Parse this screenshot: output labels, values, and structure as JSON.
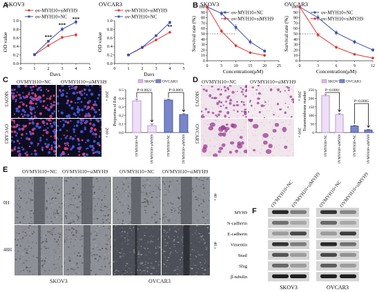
{
  "panel_letters": {
    "a": "A",
    "b": "B",
    "c": "C",
    "d": "D",
    "e": "E",
    "f": "F"
  },
  "colors": {
    "nc": "#3a4fa8",
    "si": "#e03232",
    "skov3_bar": "#d8b8e8",
    "ovcar3_bar": "#7a86c8"
  },
  "panel_a": {
    "left": {
      "title": "SKOV3",
      "legend": [
        "ov-MYH10+siMYH9",
        "ov-MYH10+NC"
      ],
      "ylabel": "OD value",
      "xlabel": "Days",
      "xticks": [
        "0",
        "1",
        "2",
        "3",
        "4",
        "5"
      ],
      "yticks": [
        "0.0",
        "0.2",
        "0.4",
        "0.6",
        "0.8",
        "1.0"
      ],
      "stars": [
        "***",
        "***",
        "***"
      ]
    },
    "right": {
      "title": "OVCAR3",
      "legend": [
        "ov-MYH10+siMYH9",
        "ov-MYH10+NC"
      ],
      "ylabel": "OD value",
      "xlabel": "Days",
      "xticks": [
        "0",
        "1",
        "2",
        "3",
        "4",
        "5"
      ],
      "yticks": [
        "0.0",
        "0.2",
        "0.4",
        "0.6",
        "0.8",
        "1.0"
      ],
      "stars": [
        "**"
      ]
    }
  },
  "panel_b": {
    "left": {
      "title": "SKOV3",
      "legend": [
        "ov-MYH10+NC",
        "ov-MYH10+siMYH9"
      ],
      "ylabel": "Survival rate (%)",
      "xlabel": "Concentration(μM)",
      "xticks": [
        "0",
        "5",
        "10",
        "15",
        "20",
        "25"
      ],
      "yticks": [
        "0",
        "10",
        "20",
        "30",
        "40",
        "50",
        "60",
        "70",
        "80",
        "90",
        "100"
      ]
    },
    "right": {
      "title": "OVCAR3",
      "legend": [
        "ov-MYH10+NC",
        "ov-MYH10+siMYH9"
      ],
      "ylabel": "Survival rate (%)",
      "xlabel": "Concentration(μM)",
      "xticks": [
        "0",
        "3",
        "6",
        "9",
        "12"
      ],
      "yticks": [
        "0",
        "10",
        "20",
        "30",
        "40",
        "50",
        "60",
        "70",
        "80",
        "90",
        "100"
      ]
    }
  },
  "panel_c": {
    "col_headers": [
      "OVMYH10+NC",
      "OVMYH10+siMYH9"
    ],
    "row_labels": [
      "SKOV3",
      "OVCAR3"
    ],
    "magnification": [
      "200×",
      "200×"
    ],
    "legend": [
      "SKOV3",
      "OVCAR3"
    ],
    "ylabel": "Proportion of Edu",
    "pvalues": [
      "P=0.0021",
      "P<0.0001"
    ],
    "yticks": [
      "0.0",
      "0.1",
      "0.2",
      "0.3",
      "0.4",
      "0.5"
    ],
    "bar_labels": [
      "OVMYH10+NC",
      "OVMYH10+siMYH9",
      "OVMYH10+NC",
      "OVMYH10+siMYH9"
    ]
  },
  "panel_d": {
    "col_headers": [
      "OVMYH10+NC",
      "OVMYH10+siMYH9"
    ],
    "row_labels": [
      "SKOV3",
      "OVCAR3"
    ],
    "magnification": [
      "200×",
      "200×"
    ],
    "legend": [
      "SKOV3",
      "OVCAR3"
    ],
    "ylabel": "Transmembrane number",
    "pvalues": [
      "P<0.0001",
      "P=0.0005"
    ],
    "yticks": [
      "0",
      "50",
      "100",
      "150",
      "200",
      "250"
    ],
    "bar_labels": [
      "OVMYH10+NC",
      "OVMYH10+siMYH9",
      "OVMYH10+NC",
      "OVMYH10+siMYH9"
    ]
  },
  "panel_e": {
    "col_headers": [
      "OVMYH10+NC",
      "OVMYH10+siMYH9",
      "OVMYH10+NC",
      "OVMYH10+siMYH9"
    ],
    "row_labels": [
      "0H",
      "48H"
    ],
    "magnification": [
      "40×",
      "40×"
    ],
    "group_labels": [
      "SKOV3",
      "OVCAR3"
    ]
  },
  "panel_f": {
    "col_headers": [
      "OVMYH10+NC",
      "OVMYH10+siMYH9",
      "OVMYH10+NC",
      "OVMYH10+siMYH9"
    ],
    "proteins": [
      "MYH9",
      "N-cadherin",
      "E-cadherin",
      "Vimentin",
      "Snail",
      "Slug",
      "β-tubulin"
    ],
    "group_labels": [
      "SKOV3",
      "OVCAR3"
    ]
  },
  "chart_data": [
    {
      "type": "line",
      "title": "SKOV3",
      "xlabel": "Days",
      "ylabel": "OD value",
      "x": [
        1,
        2,
        3,
        4
      ],
      "xlim": [
        0,
        5
      ],
      "ylim": [
        0,
        1.0
      ],
      "series": [
        {
          "name": "ov-MYH10+siMYH9",
          "values": [
            0.2,
            0.42,
            0.61,
            0.67
          ],
          "err": [
            0.02,
            0.03,
            0.04,
            0.05
          ]
        },
        {
          "name": "ov-MYH10+NC",
          "values": [
            0.21,
            0.52,
            0.8,
            0.97
          ],
          "err": [
            0.02,
            0.03,
            0.05,
            0.06
          ]
        }
      ]
    },
    {
      "type": "line",
      "title": "OVCAR3",
      "xlabel": "Days",
      "ylabel": "OD value",
      "x": [
        1,
        2,
        3,
        4
      ],
      "xlim": [
        0,
        5
      ],
      "ylim": [
        0,
        1.0
      ],
      "series": [
        {
          "name": "ov-MYH10+siMYH9",
          "values": [
            0.2,
            0.37,
            0.55,
            0.73
          ],
          "err": [
            0.02,
            0.02,
            0.03,
            0.03
          ]
        },
        {
          "name": "ov-MYH10+NC",
          "values": [
            0.2,
            0.38,
            0.65,
            0.96
          ],
          "err": [
            0.02,
            0.02,
            0.03,
            0.04
          ]
        }
      ]
    },
    {
      "type": "line",
      "title": "SKOV3",
      "xlabel": "Concentration(μM)",
      "ylabel": "Survival rate (%)",
      "x": [
        0,
        5,
        10,
        15,
        20
      ],
      "xlim": [
        0,
        25
      ],
      "ylim": [
        0,
        100
      ],
      "series": [
        {
          "name": "ov-MYH10+NC",
          "values": [
            100,
            88,
            62,
            35,
            18
          ],
          "err": [
            2,
            5,
            6,
            5,
            3
          ]
        },
        {
          "name": "ov-MYH10+siMYH9",
          "values": [
            100,
            55,
            28,
            15,
            10
          ],
          "err": [
            2,
            4,
            3,
            2,
            2
          ]
        }
      ]
    },
    {
      "type": "line",
      "title": "OVCAR3",
      "xlabel": "Concentration(μM)",
      "ylabel": "Survival rate (%)",
      "x": [
        0,
        3,
        6,
        9,
        12
      ],
      "xlim": [
        0,
        12
      ],
      "ylim": [
        0,
        100
      ],
      "series": [
        {
          "name": "ov-MYH10+NC",
          "values": [
            100,
            80,
            52,
            35,
            20
          ],
          "err": [
            2,
            6,
            5,
            4,
            3
          ]
        },
        {
          "name": "ov-MYH10+siMYH9",
          "values": [
            100,
            48,
            25,
            12,
            5
          ],
          "err": [
            2,
            4,
            3,
            2,
            2
          ]
        }
      ]
    },
    {
      "type": "bar",
      "ylabel": "Proportion of Edu",
      "ylim": [
        0,
        0.5
      ],
      "categories": [
        "OVMYH10+NC",
        "OVMYH10+siMYH9",
        "OVMYH10+NC",
        "OVMYH10+siMYH9"
      ],
      "groups": [
        "SKOV3",
        "SKOV3",
        "OVCAR3",
        "OVCAR3"
      ],
      "values": [
        0.37,
        0.08,
        0.38,
        0.21
      ],
      "err": [
        0.02,
        0.02,
        0.01,
        0.01
      ]
    },
    {
      "type": "bar",
      "ylabel": "Transmembrane number",
      "ylim": [
        0,
        250
      ],
      "categories": [
        "OVMYH10+NC",
        "OVMYH10+siMYH9",
        "OVMYH10+NC",
        "OVMYH10+siMYH9"
      ],
      "groups": [
        "SKOV3",
        "SKOV3",
        "OVCAR3",
        "OVCAR3"
      ],
      "values": [
        215,
        105,
        38,
        15
      ],
      "err": [
        8,
        5,
        4,
        3
      ]
    }
  ]
}
